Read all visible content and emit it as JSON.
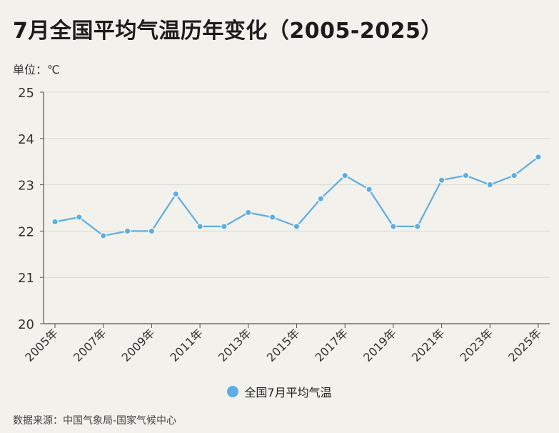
{
  "title": "7月全国平均气温历年变化（2005-2025）",
  "unit_label": "单位：℃",
  "source": "数据来源：中国气象局-国家气候中心",
  "colors": {
    "line": "#5dade2",
    "grid": "#dcd9d3",
    "axis": "#555555",
    "background": "#f3f1ec"
  },
  "chart_data": {
    "type": "line",
    "x": [
      "2005年",
      "2006年",
      "2007年",
      "2008年",
      "2009年",
      "2010年",
      "2011年",
      "2012年",
      "2013年",
      "2014年",
      "2015年",
      "2016年",
      "2017年",
      "2018年",
      "2019年",
      "2020年",
      "2021年",
      "2022年",
      "2023年",
      "2024年",
      "2025年"
    ],
    "x_tick_labels": [
      "2005年",
      "2007年",
      "2009年",
      "2011年",
      "2013年",
      "2015年",
      "2017年",
      "2019年",
      "2021年",
      "2023年",
      "2025年"
    ],
    "series": [
      {
        "name": "全国7月平均气温",
        "values": [
          22.2,
          22.3,
          21.9,
          22.0,
          22.0,
          22.8,
          22.1,
          22.1,
          22.4,
          22.3,
          22.1,
          22.7,
          23.2,
          22.9,
          22.1,
          22.1,
          23.1,
          23.2,
          23.0,
          23.2,
          23.6
        ]
      }
    ],
    "ylim": [
      20,
      25
    ],
    "y_ticks": [
      20,
      21,
      22,
      23,
      24,
      25
    ],
    "grid": true,
    "legend_position": "bottom-center"
  }
}
